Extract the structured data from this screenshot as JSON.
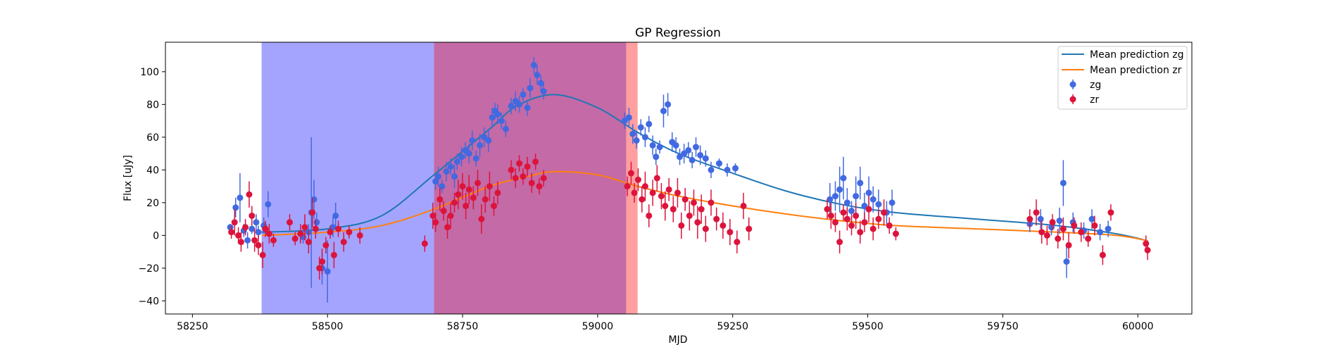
{
  "chart_data": {
    "type": "scatter",
    "title": "GP Regression",
    "xlabel": "MJD",
    "ylabel": "Flux [uJy]",
    "xlim": [
      58200,
      60100
    ],
    "ylim": [
      -48,
      118
    ],
    "xticks": [
      58250,
      58500,
      58750,
      59000,
      59250,
      59500,
      59750,
      60000
    ],
    "yticks": [
      -40,
      -20,
      0,
      20,
      40,
      60,
      80,
      100
    ],
    "grid": false,
    "legend_position": "upper-right",
    "shaded_regions": [
      {
        "x0": 58378,
        "x1": 58697,
        "color": "#a4a4ff"
      },
      {
        "x0": 58697,
        "x1": 59053,
        "color": "#c46aa6"
      },
      {
        "x0": 59053,
        "x1": 59074,
        "color": "#ff9f9f"
      }
    ],
    "colors": {
      "zg_line": "#1f77b4",
      "zr_line": "#ff7f0e",
      "zg_points": "#4169e1",
      "zr_points": "#dc143c"
    },
    "series": [
      {
        "name": "Mean prediction zg",
        "kind": "line",
        "color": "#1f77b4",
        "x": [
          58378,
          58500,
          58600,
          58697,
          58800,
          58850,
          58920,
          59000,
          59074,
          59150,
          59250,
          59350,
          59450,
          59550,
          59700,
          59850,
          59960,
          60015
        ],
        "y": [
          2,
          4,
          12,
          37,
          65,
          79,
          86,
          78,
          63,
          50,
          38,
          27,
          19,
          14,
          10,
          6,
          1,
          -3
        ]
      },
      {
        "name": "Mean prediction zr",
        "kind": "line",
        "color": "#ff7f0e",
        "x": [
          58378,
          58500,
          58600,
          58697,
          58800,
          58870,
          58920,
          59000,
          59074,
          59150,
          59250,
          59350,
          59450,
          59550,
          59700,
          59850,
          59960,
          60015
        ],
        "y": [
          0,
          2,
          6,
          16,
          30,
          36,
          39,
          37,
          30,
          24,
          18,
          13,
          9,
          6,
          4,
          2,
          0,
          -3
        ]
      },
      {
        "name": "zg",
        "kind": "errorbar",
        "color": "#4169e1",
        "points": [
          [
            58320,
            5,
            2
          ],
          [
            58330,
            17,
            6
          ],
          [
            58338,
            23,
            15
          ],
          [
            58345,
            3,
            4
          ],
          [
            58352,
            -3,
            5
          ],
          [
            58360,
            4,
            3
          ],
          [
            58368,
            8,
            5
          ],
          [
            58372,
            2,
            4
          ],
          [
            58382,
            6,
            5
          ],
          [
            58390,
            19,
            8
          ],
          [
            58455,
            -1,
            4
          ],
          [
            58465,
            2,
            5
          ],
          [
            58470,
            14,
            46
          ],
          [
            58475,
            22,
            12
          ],
          [
            58480,
            8,
            6
          ],
          [
            58490,
            -20,
            10
          ],
          [
            58500,
            -22,
            19
          ],
          [
            58510,
            5,
            6
          ],
          [
            58515,
            12,
            8
          ],
          [
            58700,
            33,
            5
          ],
          [
            58705,
            36,
            6
          ],
          [
            58712,
            30,
            4
          ],
          [
            58720,
            39,
            6
          ],
          [
            58728,
            42,
            5
          ],
          [
            58735,
            36,
            7
          ],
          [
            58740,
            45,
            5
          ],
          [
            58748,
            48,
            6
          ],
          [
            58755,
            52,
            5
          ],
          [
            58762,
            50,
            6
          ],
          [
            58768,
            58,
            6
          ],
          [
            58775,
            47,
            5
          ],
          [
            58782,
            55,
            7
          ],
          [
            58790,
            60,
            6
          ],
          [
            58798,
            58,
            7
          ],
          [
            58805,
            72,
            6
          ],
          [
            58810,
            76,
            5
          ],
          [
            58815,
            74,
            6
          ],
          [
            58822,
            70,
            5
          ],
          [
            58830,
            65,
            5
          ],
          [
            58840,
            79,
            5
          ],
          [
            58848,
            82,
            6
          ],
          [
            58855,
            80,
            5
          ],
          [
            58862,
            86,
            4
          ],
          [
            58870,
            78,
            5
          ],
          [
            58875,
            90,
            6
          ],
          [
            58882,
            104,
            5
          ],
          [
            58888,
            98,
            6
          ],
          [
            58895,
            93,
            5
          ],
          [
            58900,
            88,
            5
          ],
          [
            59050,
            70,
            5
          ],
          [
            59058,
            72,
            6
          ],
          [
            59065,
            62,
            6
          ],
          [
            59072,
            58,
            5
          ],
          [
            59080,
            66,
            5
          ],
          [
            59088,
            60,
            6
          ],
          [
            59095,
            68,
            5
          ],
          [
            59102,
            55,
            6
          ],
          [
            59108,
            48,
            5
          ],
          [
            59115,
            54,
            4
          ],
          [
            59122,
            76,
            10
          ],
          [
            59130,
            80,
            7
          ],
          [
            59138,
            57,
            6
          ],
          [
            59145,
            55,
            5
          ],
          [
            59152,
            48,
            5
          ],
          [
            59160,
            50,
            6
          ],
          [
            59168,
            52,
            5
          ],
          [
            59175,
            46,
            5
          ],
          [
            59182,
            54,
            6
          ],
          [
            59190,
            49,
            6
          ],
          [
            59200,
            47,
            5
          ],
          [
            59210,
            40,
            5
          ],
          [
            59225,
            44,
            3
          ],
          [
            59240,
            40,
            4
          ],
          [
            59255,
            41,
            3
          ],
          [
            59430,
            22,
            10
          ],
          [
            59440,
            24,
            9
          ],
          [
            59448,
            28,
            14
          ],
          [
            59455,
            35,
            13
          ],
          [
            59462,
            20,
            9
          ],
          [
            59470,
            15,
            6
          ],
          [
            59478,
            24,
            12
          ],
          [
            59486,
            32,
            10
          ],
          [
            59494,
            18,
            8
          ],
          [
            59502,
            26,
            10
          ],
          [
            59510,
            22,
            8
          ],
          [
            59520,
            19,
            9
          ],
          [
            59535,
            14,
            7
          ],
          [
            59545,
            20,
            8
          ],
          [
            59800,
            7,
            5
          ],
          [
            59820,
            10,
            6
          ],
          [
            59840,
            5,
            5
          ],
          [
            59855,
            9,
            8
          ],
          [
            59862,
            32,
            14
          ],
          [
            59868,
            -16,
            10
          ],
          [
            59880,
            8,
            6
          ],
          [
            59900,
            3,
            5
          ],
          [
            59915,
            10,
            6
          ],
          [
            59930,
            2,
            5
          ],
          [
            59945,
            4,
            5
          ]
        ]
      },
      {
        "name": "zr",
        "kind": "errorbar",
        "color": "#dc143c",
        "points": [
          [
            58322,
            2,
            4
          ],
          [
            58328,
            8,
            8
          ],
          [
            58335,
            0,
            5
          ],
          [
            58340,
            -4,
            6
          ],
          [
            58348,
            5,
            5
          ],
          [
            58355,
            25,
            8
          ],
          [
            58360,
            12,
            6
          ],
          [
            58365,
            -3,
            7
          ],
          [
            58372,
            -6,
            6
          ],
          [
            58380,
            -12,
            8
          ],
          [
            58385,
            4,
            5
          ],
          [
            58392,
            1,
            6
          ],
          [
            58400,
            -3,
            4
          ],
          [
            58430,
            8,
            5
          ],
          [
            58440,
            -2,
            4
          ],
          [
            58450,
            1,
            6
          ],
          [
            58458,
            5,
            8
          ],
          [
            58465,
            -4,
            7
          ],
          [
            58472,
            14,
            9
          ],
          [
            58478,
            4,
            6
          ],
          [
            58485,
            -20,
            7
          ],
          [
            58490,
            -16,
            8
          ],
          [
            58497,
            -6,
            5
          ],
          [
            58505,
            2,
            4
          ],
          [
            58512,
            -12,
            8
          ],
          [
            58520,
            4,
            5
          ],
          [
            58530,
            -4,
            6
          ],
          [
            58540,
            2,
            4
          ],
          [
            58560,
            0,
            5
          ],
          [
            58680,
            -5,
            5
          ],
          [
            58695,
            12,
            8
          ],
          [
            58700,
            8,
            6
          ],
          [
            58708,
            22,
            7
          ],
          [
            58715,
            15,
            6
          ],
          [
            58722,
            5,
            7
          ],
          [
            58728,
            12,
            8
          ],
          [
            58735,
            20,
            6
          ],
          [
            58742,
            25,
            9
          ],
          [
            58750,
            30,
            8
          ],
          [
            58756,
            18,
            8
          ],
          [
            58762,
            28,
            9
          ],
          [
            58770,
            23,
            7
          ],
          [
            58778,
            32,
            8
          ],
          [
            58785,
            10,
            9
          ],
          [
            58792,
            22,
            8
          ],
          [
            58800,
            30,
            9
          ],
          [
            58808,
            18,
            6
          ],
          [
            58815,
            26,
            7
          ],
          [
            58840,
            40,
            6
          ],
          [
            58848,
            35,
            6
          ],
          [
            58855,
            44,
            5
          ],
          [
            58862,
            36,
            5
          ],
          [
            58870,
            42,
            6
          ],
          [
            58878,
            32,
            6
          ],
          [
            58885,
            45,
            5
          ],
          [
            58892,
            30,
            5
          ],
          [
            58900,
            35,
            5
          ],
          [
            59055,
            30,
            6
          ],
          [
            59062,
            38,
            7
          ],
          [
            59068,
            26,
            6
          ],
          [
            59075,
            34,
            7
          ],
          [
            59082,
            22,
            8
          ],
          [
            59088,
            30,
            9
          ],
          [
            59095,
            12,
            7
          ],
          [
            59102,
            26,
            8
          ],
          [
            59110,
            35,
            8
          ],
          [
            59118,
            24,
            8
          ],
          [
            59125,
            18,
            9
          ],
          [
            59132,
            28,
            7
          ],
          [
            59140,
            16,
            8
          ],
          [
            59148,
            26,
            9
          ],
          [
            59155,
            6,
            8
          ],
          [
            59162,
            22,
            7
          ],
          [
            59170,
            12,
            9
          ],
          [
            59178,
            20,
            8
          ],
          [
            59185,
            8,
            10
          ],
          [
            59192,
            16,
            9
          ],
          [
            59200,
            4,
            8
          ],
          [
            59210,
            20,
            8
          ],
          [
            59220,
            10,
            7
          ],
          [
            59232,
            6,
            8
          ],
          [
            59245,
            2,
            8
          ],
          [
            59258,
            -4,
            7
          ],
          [
            59270,
            18,
            8
          ],
          [
            59280,
            4,
            7
          ],
          [
            59425,
            16,
            6
          ],
          [
            59432,
            12,
            8
          ],
          [
            59440,
            8,
            6
          ],
          [
            59448,
            -4,
            7
          ],
          [
            59455,
            14,
            5
          ],
          [
            59462,
            10,
            7
          ],
          [
            59470,
            6,
            6
          ],
          [
            59478,
            12,
            8
          ],
          [
            59486,
            2,
            7
          ],
          [
            59494,
            8,
            6
          ],
          [
            59502,
            16,
            8
          ],
          [
            59510,
            4,
            7
          ],
          [
            59520,
            10,
            6
          ],
          [
            59530,
            14,
            8
          ],
          [
            59540,
            6,
            5
          ],
          [
            59552,
            1,
            4
          ],
          [
            59800,
            10,
            6
          ],
          [
            59812,
            14,
            8
          ],
          [
            59822,
            2,
            7
          ],
          [
            59832,
            0,
            6
          ],
          [
            59842,
            8,
            5
          ],
          [
            59852,
            -2,
            6
          ],
          [
            59862,
            4,
            7
          ],
          [
            59872,
            -6,
            8
          ],
          [
            59882,
            6,
            5
          ],
          [
            59895,
            2,
            6
          ],
          [
            59908,
            -2,
            5
          ],
          [
            59920,
            6,
            6
          ],
          [
            59935,
            -12,
            6
          ],
          [
            59950,
            14,
            5
          ],
          [
            60015,
            -5,
            5
          ],
          [
            60018,
            -9,
            6
          ]
        ]
      }
    ]
  }
}
